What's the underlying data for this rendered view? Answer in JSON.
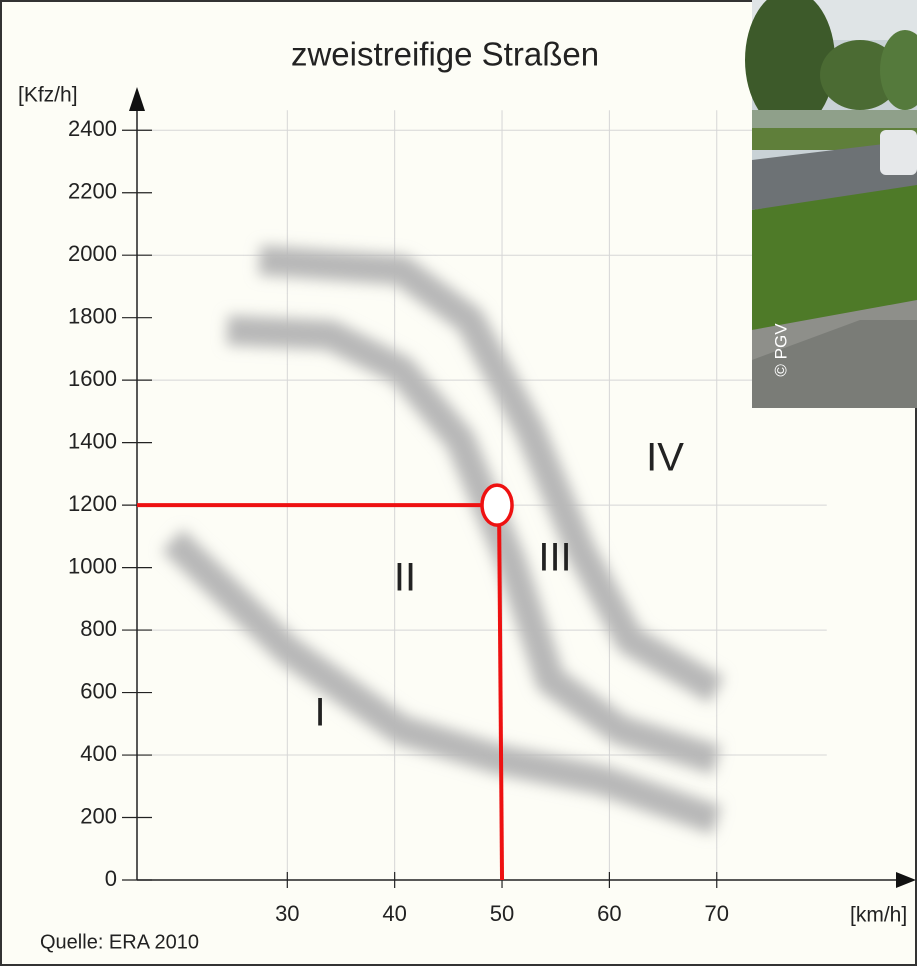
{
  "chart_data": {
    "type": "line",
    "title": "zweistreifige Straßen",
    "y_label": "[Kfz/h]",
    "x_label": "[km/h]",
    "source": "Quelle: ERA  2010",
    "photo_credit": "© PGV",
    "xlim": [
      16,
      88
    ],
    "ylim": [
      0,
      2500
    ],
    "xticks": [
      30,
      40,
      50,
      60,
      70
    ],
    "yticks": [
      0,
      200,
      400,
      600,
      800,
      1000,
      1200,
      1400,
      1600,
      1800,
      2000,
      2200,
      2400
    ],
    "grid": true,
    "zones": [
      "I",
      "II",
      "III",
      "IV"
    ],
    "series": [
      {
        "color": "#b8b8b8",
        "x": [
          19.3,
          30,
          40.6,
          49.9,
          59.2,
          70
        ],
        "values": [
          1088,
          736,
          480,
          384,
          320,
          192
        ]
      },
      {
        "color": "#b8b8b8",
        "x": [
          24.4,
          34,
          40.6,
          46.1,
          50.8,
          54.5,
          61,
          70
        ],
        "values": [
          1760,
          1744,
          1632,
          1408,
          1024,
          640,
          480,
          384
        ]
      },
      {
        "color": "#b8b8b8",
        "x": [
          27.4,
          40.6,
          47,
          52.6,
          57.3,
          61.9,
          70
        ],
        "values": [
          1984,
          1952,
          1792,
          1440,
          1056,
          768,
          608
        ]
      }
    ],
    "reading": {
      "x": 50,
      "y": 1200,
      "color": "#ee1111"
    }
  }
}
